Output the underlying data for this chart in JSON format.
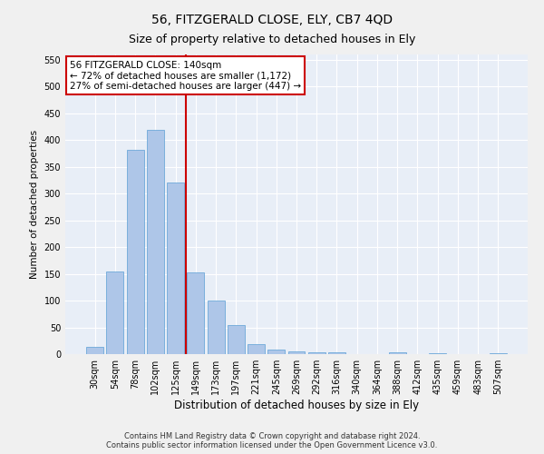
{
  "title": "56, FITZGERALD CLOSE, ELY, CB7 4QD",
  "subtitle": "Size of property relative to detached houses in Ely",
  "xlabel": "Distribution of detached houses by size in Ely",
  "ylabel": "Number of detached properties",
  "categories": [
    "30sqm",
    "54sqm",
    "78sqm",
    "102sqm",
    "125sqm",
    "149sqm",
    "173sqm",
    "197sqm",
    "221sqm",
    "245sqm",
    "269sqm",
    "292sqm",
    "316sqm",
    "340sqm",
    "364sqm",
    "388sqm",
    "412sqm",
    "435sqm",
    "459sqm",
    "483sqm",
    "507sqm"
  ],
  "values": [
    13,
    155,
    382,
    420,
    320,
    152,
    100,
    55,
    18,
    9,
    5,
    4,
    3,
    0,
    0,
    3,
    0,
    1,
    0,
    0,
    1
  ],
  "bar_color": "#aec6e8",
  "bar_edge_color": "#5a9fd4",
  "vline_pos": 4.5,
  "vline_color": "#cc0000",
  "annotation_line1": "56 FITZGERALD CLOSE: 140sqm",
  "annotation_line2": "← 72% of detached houses are smaller (1,172)",
  "annotation_line3": "27% of semi-detached houses are larger (447) →",
  "annotation_box_color": "#ffffff",
  "annotation_box_edge": "#cc0000",
  "ylim": [
    0,
    560
  ],
  "yticks": [
    0,
    50,
    100,
    150,
    200,
    250,
    300,
    350,
    400,
    450,
    500,
    550
  ],
  "footer_text": "Contains HM Land Registry data © Crown copyright and database right 2024.\nContains public sector information licensed under the Open Government Licence v3.0.",
  "background_color": "#e8eef7",
  "grid_color": "#ffffff",
  "fig_background": "#f0f0f0",
  "title_fontsize": 10,
  "subtitle_fontsize": 9,
  "xlabel_fontsize": 8.5,
  "ylabel_fontsize": 7.5,
  "tick_fontsize": 7,
  "annotation_fontsize": 7.5,
  "footer_fontsize": 6
}
